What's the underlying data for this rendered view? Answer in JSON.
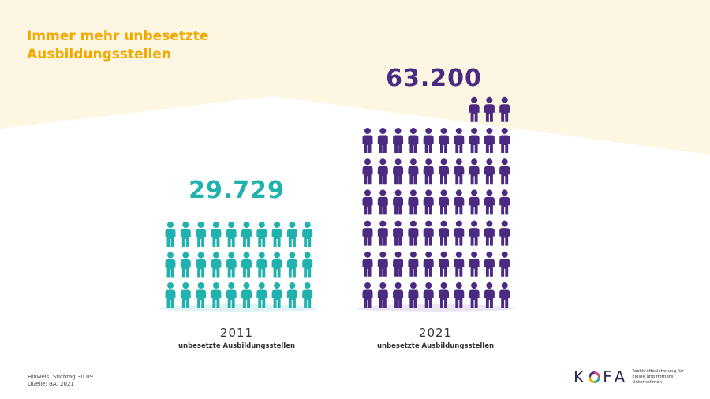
{
  "title": "Immer mehr unbesetzte Ausbildungsstellen",
  "colors": {
    "background_band": "#fdf6e3",
    "title": "#f2a900",
    "series_2011": "#21b2ad",
    "series_2021": "#4b2a82",
    "shadow_2011": "#dff3f4",
    "shadow_2021": "#ece6f3"
  },
  "chart_data": {
    "type": "bar",
    "title": "Immer mehr unbesetzte Ausbildungsstellen",
    "categories": [
      "2011",
      "2021"
    ],
    "values": [
      29729,
      63200
    ],
    "value_labels": [
      "29.729",
      "63.200"
    ],
    "caption": "unbesetzte Ausbildungsstellen",
    "icons_per_row": 10
  },
  "groups": [
    {
      "total": "29.729",
      "year": "2011",
      "caption": "unbesetzte Ausbildungsstellen"
    },
    {
      "total": "63.200",
      "year": "2021",
      "caption": "unbesetzte Ausbildungsstellen"
    }
  ],
  "footer": {
    "note": "Hinweis: Stichtag 30.09.",
    "source": "Quelle: BA, 2021"
  },
  "logo": {
    "letter_1": "K",
    "letter_3": "F",
    "letter_4": "A",
    "tagline_1": "Fachkräftesicherung für",
    "tagline_2": "kleine und mittlere Unternehmen"
  }
}
